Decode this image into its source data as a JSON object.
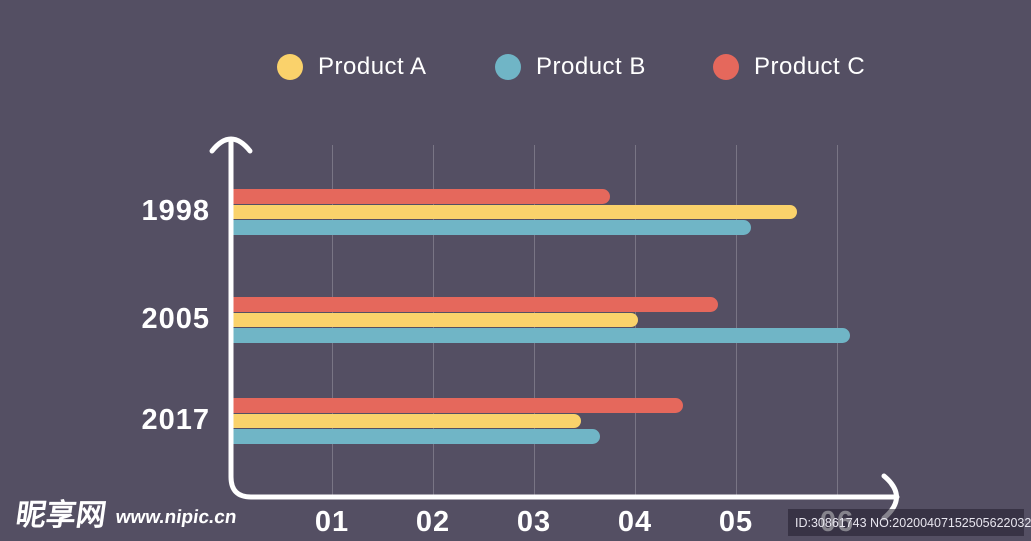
{
  "watermark": {
    "site_name": "昵享网",
    "site_url": "www.nipic.cn"
  },
  "id_bar": {
    "text": "ID:30861743 NO:20200407152505622032"
  },
  "colors": {
    "background": "#544F63",
    "gridline": "rgba(255,255,255,0.22)",
    "axis": "#FFFFFF",
    "text": "#FFFFFF"
  },
  "chart_data": {
    "type": "bar",
    "orientation": "horizontal",
    "title": "",
    "categories": [
      "1998",
      "2005",
      "2017"
    ],
    "series": [
      {
        "name": "Product A",
        "color": "#FAD26B",
        "values": [
          5.6,
          4.03,
          3.47
        ]
      },
      {
        "name": "Product B",
        "color": "#70B5C6",
        "values": [
          5.15,
          6.13,
          3.65
        ]
      },
      {
        "name": "Product C",
        "color": "#E5685C",
        "values": [
          3.75,
          4.82,
          4.48
        ]
      }
    ],
    "row_order_top_to_bottom": [
      "Product C",
      "Product A",
      "Product B"
    ],
    "x_ticks": [
      "01",
      "02",
      "03",
      "04",
      "05",
      "06"
    ],
    "xlim": [
      0,
      6.6
    ],
    "grid": "vertical-at-ticks",
    "legend_position": "top"
  }
}
